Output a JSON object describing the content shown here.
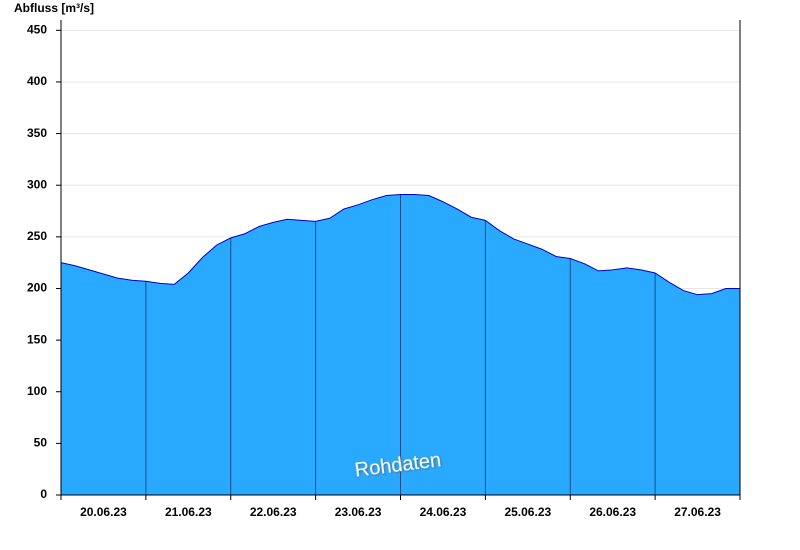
{
  "chart_data": {
    "type": "area",
    "y_label": "Abfluss [m³/s]",
    "watermark": "Rohdaten",
    "categories": [
      "20.06.23",
      "21.06.23",
      "22.06.23",
      "23.06.23",
      "24.06.23",
      "25.06.23",
      "26.06.23",
      "27.06.23"
    ],
    "values": [
      [
        225,
        222,
        218,
        214,
        210,
        208
      ],
      [
        207,
        205,
        204,
        215,
        230,
        242
      ],
      [
        249,
        253,
        260,
        264,
        267,
        266
      ],
      [
        265,
        268,
        277,
        281,
        286,
        290
      ],
      [
        291,
        291,
        290,
        284,
        277,
        269
      ],
      [
        266,
        256,
        248,
        243,
        238,
        231
      ],
      [
        229,
        224,
        217,
        218,
        220,
        218
      ],
      [
        215,
        206,
        198,
        194,
        195,
        200
      ]
    ],
    "color": "#29a9ff",
    "line_color": "#0000cc",
    "ylim": [
      0,
      460
    ],
    "yticks": [
      0,
      50,
      100,
      150,
      200,
      250,
      300,
      350,
      400,
      450
    ],
    "grid": true
  }
}
